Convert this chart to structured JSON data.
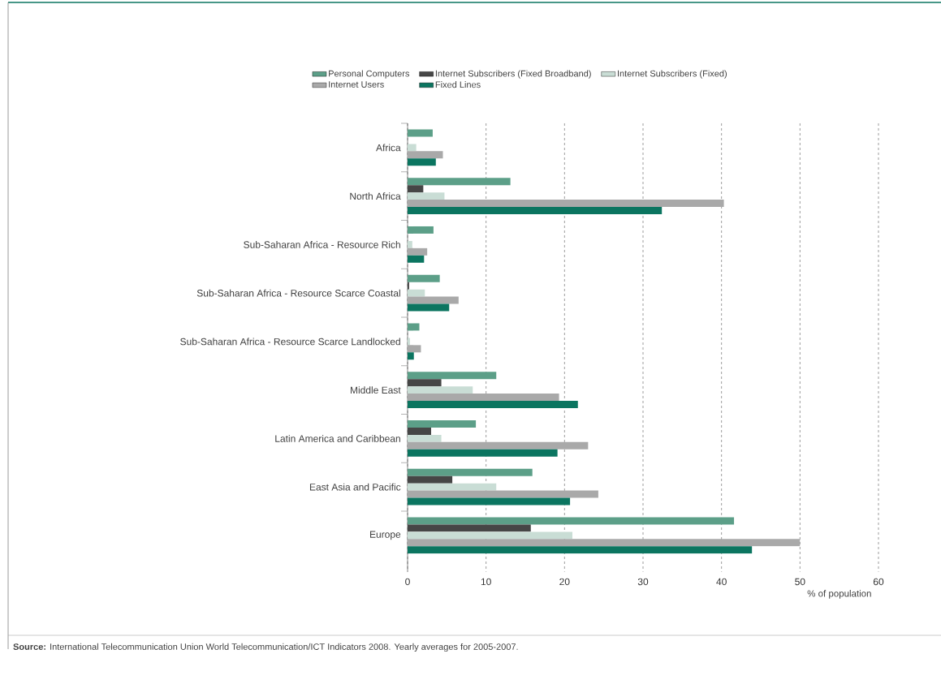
{
  "chart_data": {
    "type": "bar",
    "orientation": "horizontal",
    "categories": [
      "Africa",
      "North Africa",
      "Sub-Saharan Africa - Resource Rich",
      "Sub-Saharan Africa - Resource Scarce Coastal",
      "Sub-Saharan Africa - Resource Scarce Landlocked",
      "Middle East",
      "Latin America and Caribbean",
      "East Asia and Pacific",
      "Europe"
    ],
    "series": [
      {
        "name": "Personal Computers",
        "color": "#5c9f88",
        "values": [
          3.2,
          13.1,
          3.3,
          4.1,
          1.5,
          11.3,
          8.7,
          15.9,
          41.6
        ]
      },
      {
        "name": "Internet Subscribers (Fixed Broadband)",
        "color": "#464646",
        "values": [
          null,
          2.0,
          null,
          0.2,
          null,
          4.3,
          3.0,
          5.7,
          15.7
        ]
      },
      {
        "name": "Internet Subscribers (Fixed)",
        "color": "#c9ddd5",
        "values": [
          1.1,
          4.7,
          0.6,
          2.2,
          0.3,
          8.3,
          4.3,
          11.3,
          21.0
        ]
      },
      {
        "name": "Internet Users",
        "color": "#a9a9a9",
        "values": [
          4.5,
          40.3,
          2.5,
          6.5,
          1.7,
          19.3,
          23.0,
          24.3,
          50.0
        ]
      },
      {
        "name": "Fixed Lines",
        "color": "#0b7560",
        "values": [
          3.6,
          32.4,
          2.1,
          5.3,
          0.8,
          21.7,
          19.1,
          20.7,
          43.9
        ]
      }
    ],
    "xlim": [
      0,
      60
    ],
    "xticks": [
      0,
      10,
      20,
      30,
      40,
      50,
      60
    ],
    "xlabel": "% of population",
    "grid": "x",
    "legend": "top",
    "annotations": [
      "**Source:** International Telecommunication Union World Telecommunication/ICT Indicators 2008. Yearly averages for 2005-2007."
    ]
  }
}
